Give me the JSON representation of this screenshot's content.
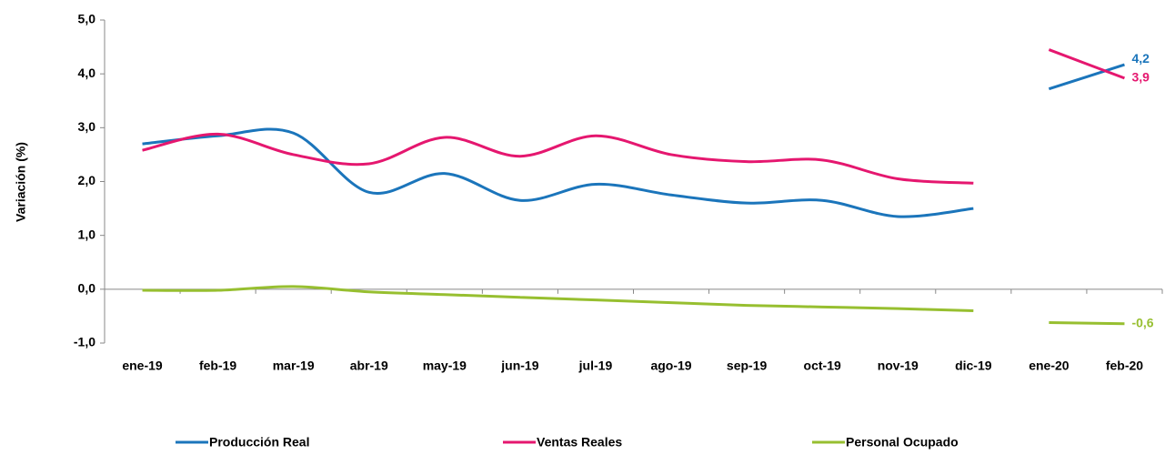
{
  "chart_data": {
    "type": "line",
    "y_label": "Variación (%)",
    "categories": [
      "ene-19",
      "feb-19",
      "mar-19",
      "abr-19",
      "may-19",
      "jun-19",
      "jul-19",
      "ago-19",
      "sep-19",
      "oct-19",
      "nov-19",
      "dic-19",
      "ene-20",
      "feb-20"
    ],
    "series": [
      {
        "name": "Producción Real",
        "color": "#1b75bb",
        "values": [
          2.7,
          2.85,
          2.9,
          1.8,
          2.15,
          1.65,
          1.95,
          1.75,
          1.6,
          1.65,
          1.35,
          1.5,
          3.72,
          4.17
        ],
        "value_labels": [
          null,
          null,
          null,
          null,
          null,
          null,
          null,
          null,
          null,
          null,
          null,
          null,
          null,
          "4,2"
        ]
      },
      {
        "name": "Ventas Reales",
        "color": "#e5176f",
        "values": [
          2.58,
          2.88,
          2.5,
          2.33,
          2.82,
          2.47,
          2.85,
          2.5,
          2.37,
          2.4,
          2.05,
          1.97,
          4.45,
          3.92
        ],
        "value_labels": [
          null,
          null,
          null,
          null,
          null,
          null,
          null,
          null,
          null,
          null,
          null,
          null,
          null,
          "3,9"
        ]
      },
      {
        "name": "Personal Ocupado",
        "color": "#97bf30",
        "values": [
          -0.02,
          -0.02,
          0.05,
          -0.05,
          -0.1,
          -0.15,
          -0.2,
          -0.25,
          -0.3,
          -0.33,
          -0.36,
          -0.4,
          -0.62,
          -0.64
        ],
        "value_labels": [
          null,
          null,
          null,
          null,
          null,
          null,
          null,
          null,
          null,
          null,
          null,
          null,
          null,
          "-0,6"
        ]
      }
    ],
    "ylim": [
      -1,
      5
    ],
    "yticks": [
      {
        "value": -1,
        "label": "-1,0"
      },
      {
        "value": 0,
        "label": "0,0"
      },
      {
        "value": 1,
        "label": "1,0"
      },
      {
        "value": 2,
        "label": "2,0"
      },
      {
        "value": 3,
        "label": "3,0"
      },
      {
        "value": 4,
        "label": "4,0"
      },
      {
        "value": 5,
        "label": "5,0"
      }
    ],
    "legend": "bottom"
  }
}
